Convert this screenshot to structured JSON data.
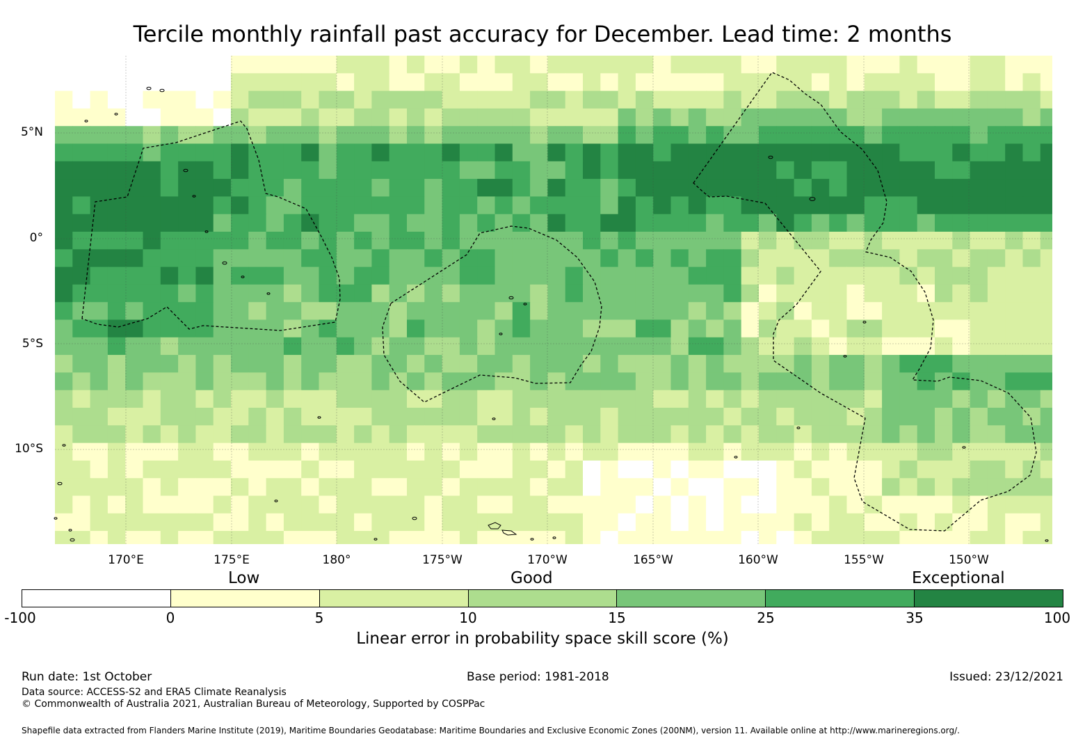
{
  "title": "Tercile monthly rainfall past accuracy for December. Lead time: 2 months",
  "map": {
    "lat_labels": [
      "5°N",
      "0°",
      "5°S",
      "10°S"
    ],
    "lon_labels": [
      "170°E",
      "175°E",
      "180°",
      "175°W",
      "170°W",
      "165°W",
      "160°W",
      "155°W",
      "150°W"
    ]
  },
  "legend": {
    "quality_labels": [
      "Low",
      "Good",
      "Exceptional"
    ],
    "ticks": [
      "-100",
      "0",
      "5",
      "10",
      "15",
      "25",
      "35",
      "100"
    ],
    "colors": [
      "#ffffff",
      "#ffffcc",
      "#d9f0a3",
      "#addd8e",
      "#78c679",
      "#41ab5d",
      "#238443"
    ],
    "title": "Linear error in probability space skill score (%)"
  },
  "footer": {
    "run_date": "Run date: 1st October",
    "base_period": "Base period: 1981-2018",
    "issued": "Issued: 23/12/2021",
    "data_source": "Data source: ACCESS-S2 and ERA5 Climate Reanalysis",
    "copyright": "© Commonwealth of Australia 2021, Australian Bureau of Meteorology, Supported by COSPPac",
    "shapefile": "Shapefile data extracted from Flanders Marine Institute (2019), Maritime Boundaries Geodatabase: Maritime Boundaries and Exclusive Economic Zones (200NM), version 11. Available online at http://www.marineregions.org/."
  }
}
